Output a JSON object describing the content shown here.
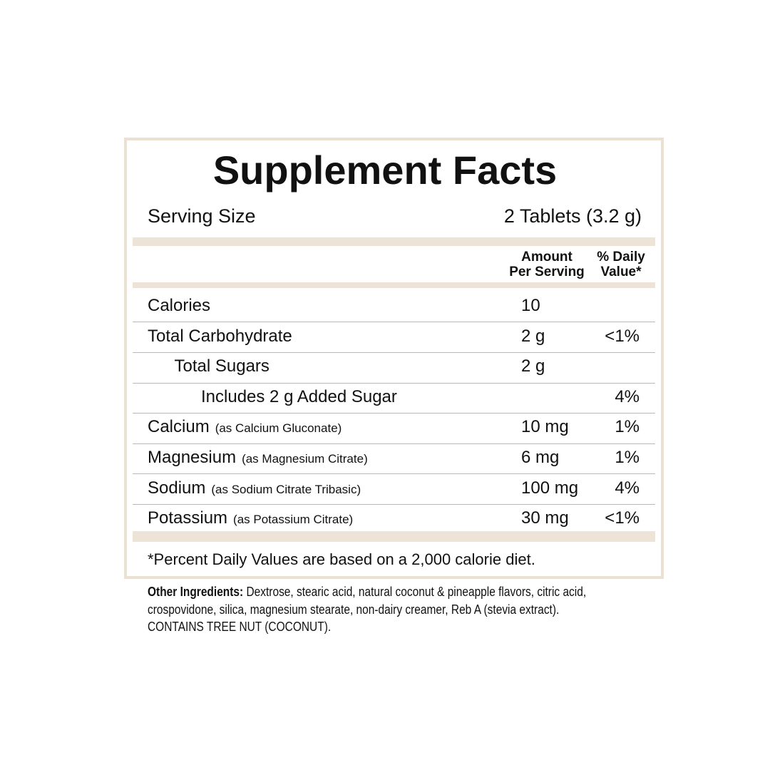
{
  "title": "Supplement Facts",
  "serving": {
    "label": "Serving Size",
    "value": "2 Tablets (3.2 g)"
  },
  "header": {
    "amount": [
      "Amount",
      "Per Serving"
    ],
    "daily_value": [
      "% Daily",
      "Value*"
    ]
  },
  "rows": [
    {
      "name": "Calories",
      "amount": "10",
      "level": 0
    },
    {
      "name": "Total Carbohydrate",
      "amount": "2 g",
      "dv": "<1%",
      "level": 0
    },
    {
      "name": "Total Sugars",
      "amount": "2 g",
      "level": 1
    },
    {
      "name": "Includes 2 g Added Sugar",
      "dv": "4%",
      "level": 2
    },
    {
      "name": "Calcium",
      "note": "(as Calcium Gluconate)",
      "amount": "10 mg",
      "dv": "1%",
      "level": 0
    },
    {
      "name": "Magnesium",
      "note": "(as Magnesium Citrate)",
      "amount": "6 mg",
      "dv": "1%",
      "level": 0
    },
    {
      "name": "Sodium",
      "note": "(as Sodium Citrate Tribasic)",
      "amount": "100 mg",
      "dv": "4%",
      "level": 0
    },
    {
      "name": "Potassium",
      "note": "(as Potassium Citrate)",
      "amount": "30 mg",
      "dv": "<1%",
      "level": 0
    }
  ],
  "footnote": "*Percent Daily Values are based on a 2,000 calorie diet.",
  "other_ingredients": {
    "label": "Other Ingredients:",
    "lines": [
      " Dextrose, stearic acid, natural coconut & pineapple flavors, citric acid,",
      "crospovidone, silica, magnesium stearate, non-dairy creamer, Reb A (stevia extract).",
      "CONTAINS TREE NUT (COCONUT)."
    ]
  }
}
